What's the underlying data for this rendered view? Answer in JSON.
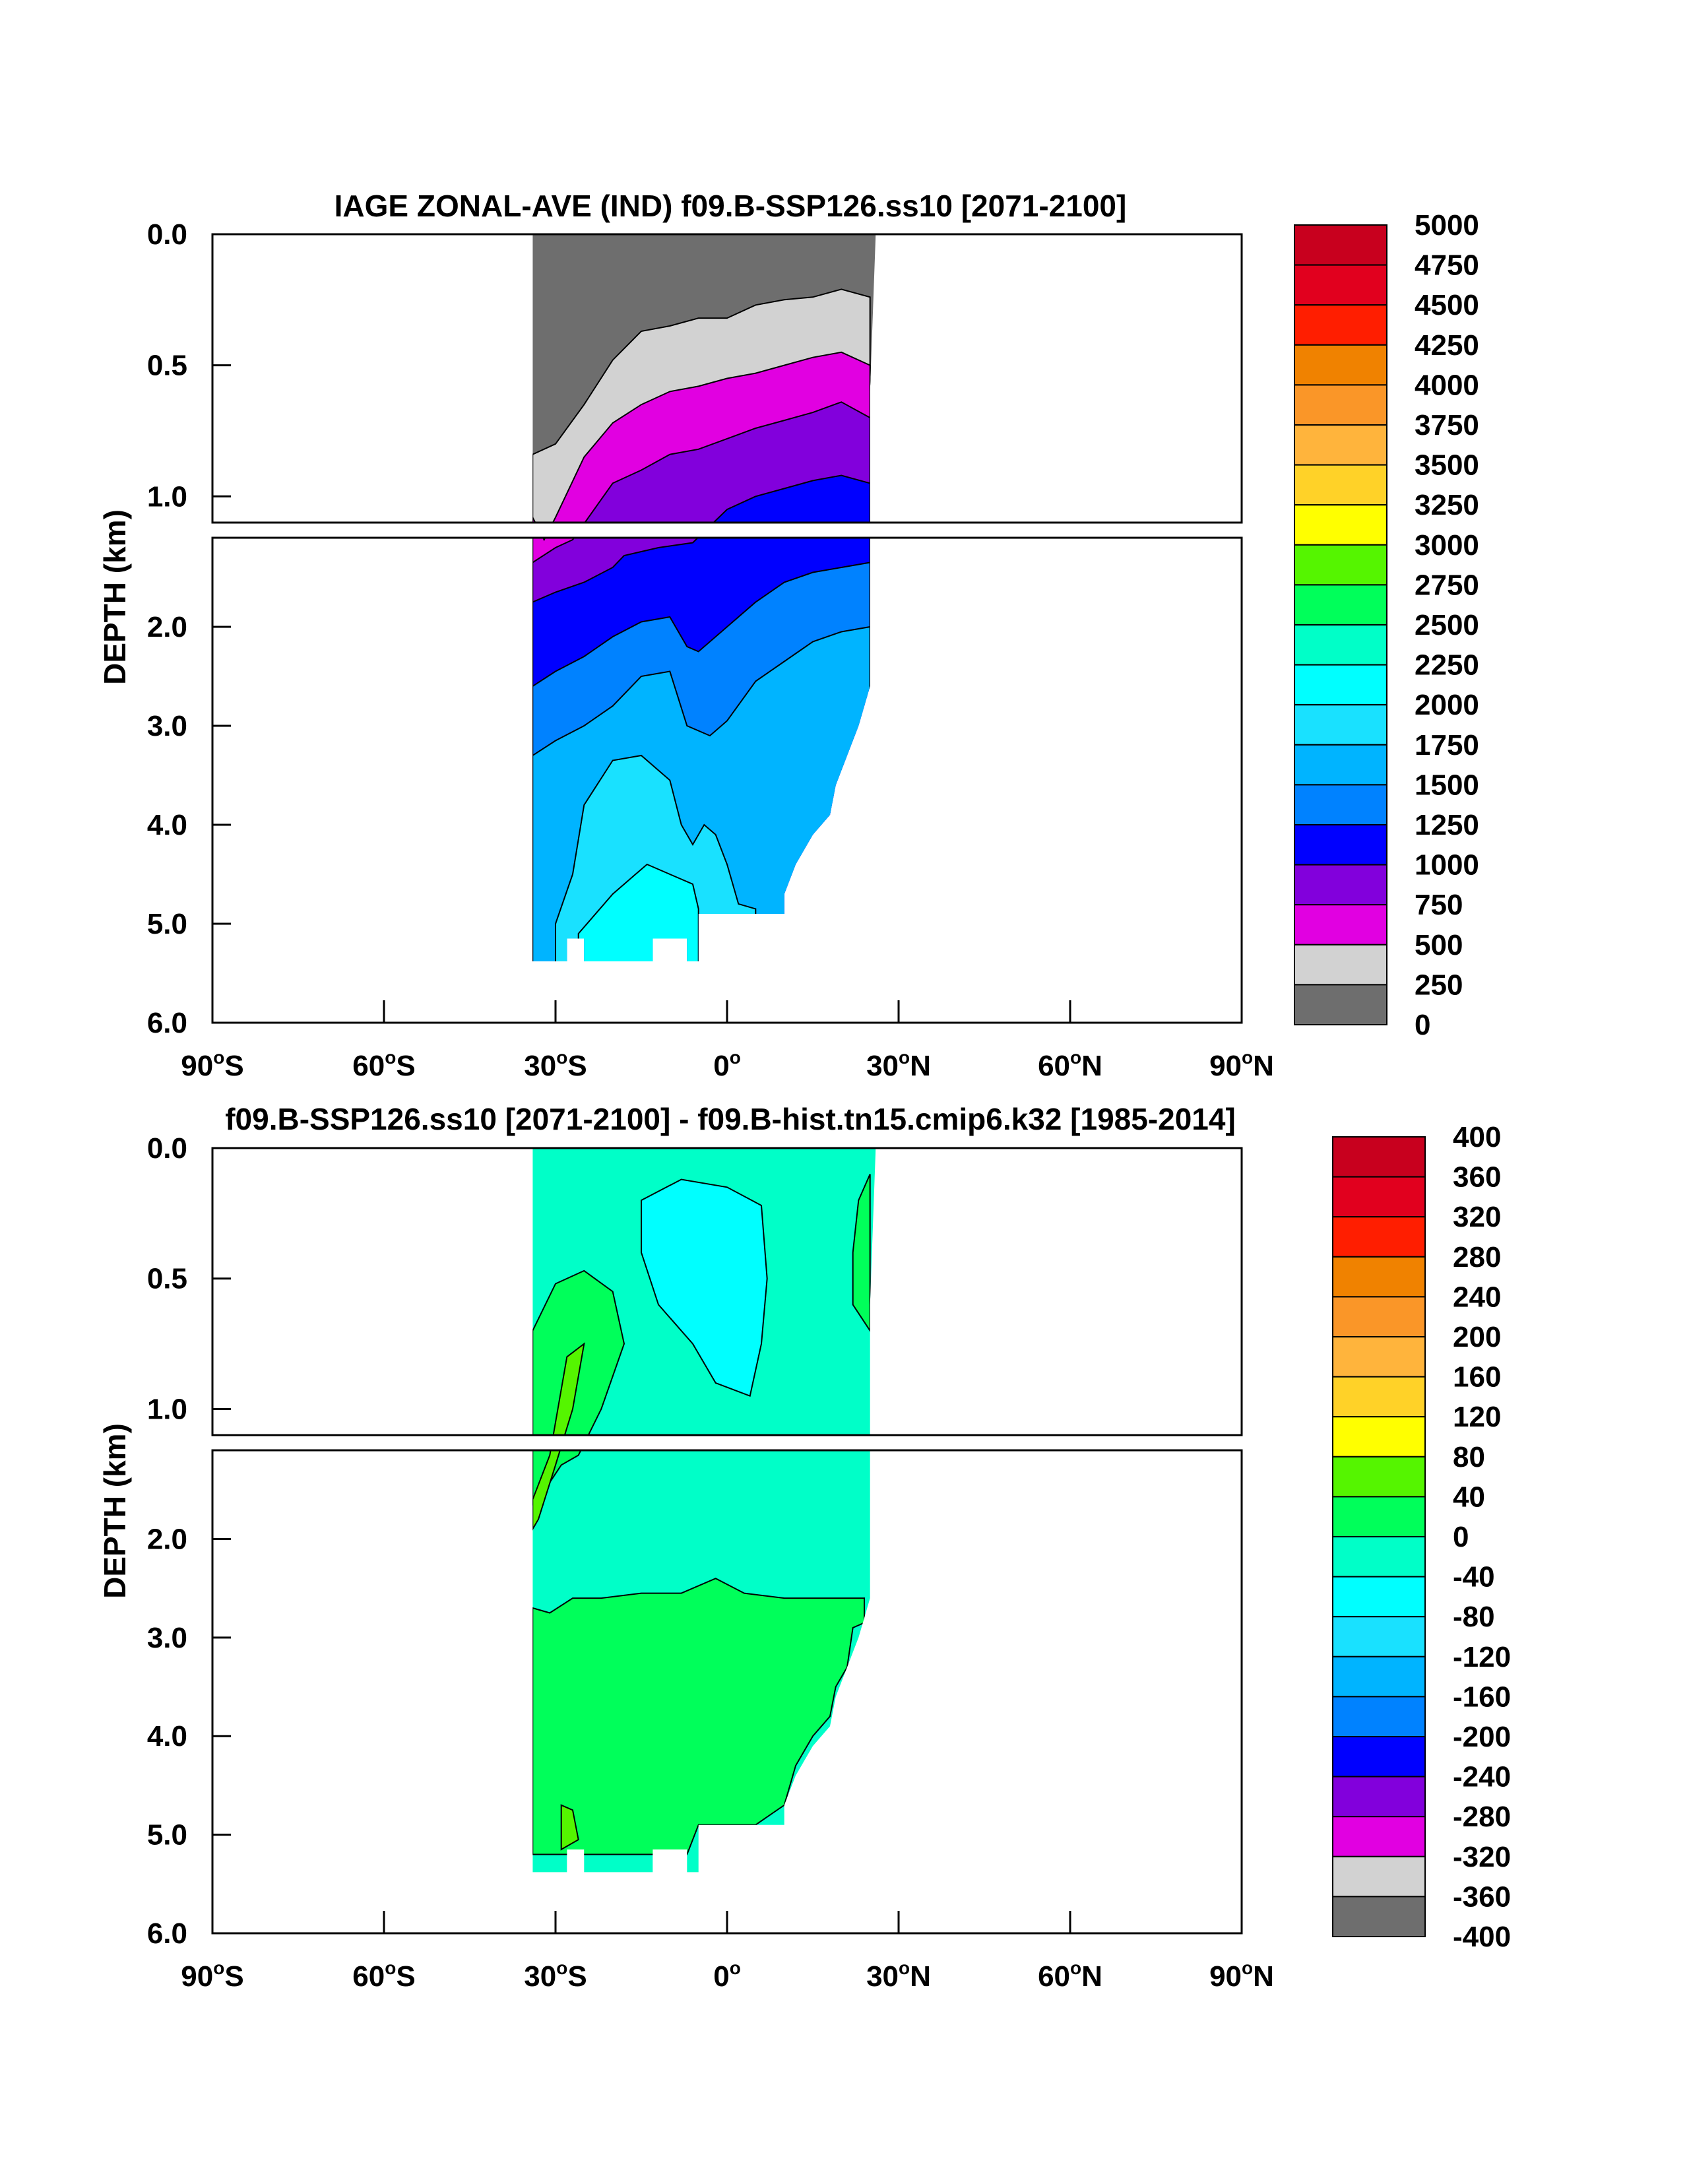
{
  "chart_data": [
    {
      "type": "heatmap",
      "title": "IAGE ZONAL-AVE (IND) f09.B-SSP126.ss10 [2071-2100]",
      "ylabel": "DEPTH (km)",
      "xlabel": "",
      "x_range": [
        -90,
        90
      ],
      "y_range": [
        0,
        6
      ],
      "y_ticks": [
        "0.0",
        "0.5",
        "1.0",
        "2.0",
        "3.0",
        "4.0",
        "5.0",
        "6.0"
      ],
      "x_ticks": [
        {
          "v": -90,
          "deg": "90",
          "hem": "S"
        },
        {
          "v": -60,
          "deg": "60",
          "hem": "S"
        },
        {
          "v": -30,
          "deg": "30",
          "hem": "S"
        },
        {
          "v": 0,
          "deg": "0",
          "hem": ""
        },
        {
          "v": 30,
          "deg": "30",
          "hem": "N"
        },
        {
          "v": 60,
          "deg": "60",
          "hem": "N"
        },
        {
          "v": 90,
          "deg": "90",
          "hem": "N"
        }
      ],
      "colorbar": {
        "levels": [
          "5000",
          "4750",
          "4500",
          "4250",
          "4000",
          "3750",
          "3500",
          "3250",
          "3000",
          "2750",
          "2500",
          "2250",
          "2000",
          "1750",
          "1500",
          "1250",
          "1000",
          "750",
          "500",
          "250",
          "0"
        ],
        "colors": [
          "#c8001e",
          "#e1001e",
          "#ff1e00",
          "#f08200",
          "#fa9628",
          "#ffb43c",
          "#ffd228",
          "#ffff00",
          "#55f500",
          "#00ff5a",
          "#00ffc8",
          "#00ffff",
          "#19e1ff",
          "#00b4ff",
          "#0082ff",
          "#0000ff",
          "#8200dc",
          "#e100e1",
          "#d2d2d2",
          "#6e6e6e"
        ]
      },
      "bands": [
        {
          "level": 0,
          "color": "#6e6e6e",
          "depth_km": [
            [
              -34,
              0
            ],
            [
              -20,
              0
            ],
            [
              -10,
              0
            ],
            [
              0,
              0
            ],
            [
              10,
              0
            ],
            [
              20,
              0
            ],
            [
              26,
              0
            ]
          ]
        },
        {
          "level": 250,
          "color": "#d2d2d2",
          "depth_km": [
            [
              -34,
              0.84
            ],
            [
              -30,
              0.8
            ],
            [
              -25,
              0.65
            ],
            [
              -20,
              0.48
            ],
            [
              -15,
              0.37
            ],
            [
              -10,
              0.35
            ],
            [
              -5,
              0.32
            ],
            [
              0,
              0.32
            ],
            [
              5,
              0.27
            ],
            [
              10,
              0.25
            ],
            [
              15,
              0.24
            ],
            [
              20,
              0.21
            ],
            [
              25,
              0.24
            ]
          ]
        },
        {
          "level": 500,
          "color": "#e100e1",
          "depth_km": [
            [
              -34,
              1.08
            ],
            [
              -32,
              1.12
            ],
            [
              -30,
              1.08
            ],
            [
              -25,
              0.85
            ],
            [
              -20,
              0.72
            ],
            [
              -15,
              0.65
            ],
            [
              -10,
              0.6
            ],
            [
              -5,
              0.58
            ],
            [
              0,
              0.55
            ],
            [
              5,
              0.53
            ],
            [
              10,
              0.5
            ],
            [
              15,
              0.47
            ],
            [
              20,
              0.45
            ],
            [
              25,
              0.5
            ]
          ]
        },
        {
          "level": 750,
          "color": "#8200dc",
          "depth_km": [
            [
              -34,
              1.35
            ],
            [
              -30,
              1.2
            ],
            [
              -27,
              1.12
            ],
            [
              -20,
              0.95
            ],
            [
              -15,
              0.9
            ],
            [
              -10,
              0.84
            ],
            [
              -5,
              0.82
            ],
            [
              0,
              0.78
            ],
            [
              5,
              0.74
            ],
            [
              10,
              0.71
            ],
            [
              15,
              0.68
            ],
            [
              20,
              0.64
            ],
            [
              25,
              0.7
            ]
          ]
        },
        {
          "level": 1000,
          "color": "#0000ff",
          "depth_km": [
            [
              -34,
              1.75
            ],
            [
              -30,
              1.65
            ],
            [
              -25,
              1.55
            ],
            [
              -20,
              1.4
            ],
            [
              -18,
              1.28
            ],
            [
              -12,
              1.2
            ],
            [
              -6,
              1.15
            ],
            [
              0,
              1.05
            ],
            [
              5,
              1.0
            ],
            [
              10,
              0.97
            ],
            [
              15,
              0.94
            ],
            [
              20,
              0.92
            ],
            [
              25,
              0.95
            ]
          ]
        },
        {
          "level": 1250,
          "color": "#0082ff",
          "depth_km": [
            [
              -34,
              2.6
            ],
            [
              -30,
              2.45
            ],
            [
              -25,
              2.3
            ],
            [
              -20,
              2.1
            ],
            [
              -15,
              1.95
            ],
            [
              -10,
              1.9
            ],
            [
              -7,
              2.2
            ],
            [
              -5,
              2.25
            ],
            [
              0,
              2.0
            ],
            [
              5,
              1.75
            ],
            [
              10,
              1.55
            ],
            [
              15,
              1.45
            ],
            [
              20,
              1.4
            ],
            [
              25,
              1.35
            ]
          ]
        },
        {
          "level": 1500,
          "color": "#00b4ff",
          "depth_km": [
            [
              -34,
              3.3
            ],
            [
              -30,
              3.15
            ],
            [
              -25,
              3.0
            ],
            [
              -20,
              2.8
            ],
            [
              -15,
              2.5
            ],
            [
              -10,
              2.45
            ],
            [
              -7,
              3.0
            ],
            [
              -3,
              3.1
            ],
            [
              0,
              2.95
            ],
            [
              5,
              2.55
            ],
            [
              10,
              2.35
            ],
            [
              15,
              2.15
            ],
            [
              20,
              2.05
            ],
            [
              25,
              2.0
            ]
          ]
        },
        {
          "level": 1750,
          "color": "#19e1ff",
          "depth_km": [
            [
              -30,
              5.0
            ],
            [
              -27,
              4.5
            ],
            [
              -25,
              3.8
            ],
            [
              -20,
              3.35
            ],
            [
              -15,
              3.3
            ],
            [
              -10,
              3.55
            ],
            [
              -8,
              4.0
            ],
            [
              -6,
              4.2
            ],
            [
              -4,
              4.0
            ],
            [
              -2,
              4.1
            ],
            [
              0,
              4.4
            ],
            [
              2,
              4.8
            ],
            [
              5,
              4.85
            ]
          ]
        },
        {
          "level": 2000,
          "color": "#00ffff",
          "depth_km": [
            [
              -26,
              5.1
            ],
            [
              -20,
              4.7
            ],
            [
              -16,
              4.5
            ],
            [
              -14,
              4.4
            ],
            [
              -10,
              4.5
            ],
            [
              -6,
              4.6
            ],
            [
              -5,
              4.85
            ]
          ]
        }
      ]
    },
    {
      "type": "heatmap",
      "title": "f09.B-SSP126.ss10 [2071-2100] - f09.B-hist.tn15.cmip6.k32 [1985-2014]",
      "ylabel": "DEPTH (km)",
      "xlabel": "",
      "x_range": [
        -90,
        90
      ],
      "y_range": [
        0,
        6
      ],
      "y_ticks": [
        "0.0",
        "0.5",
        "1.0",
        "2.0",
        "3.0",
        "4.0",
        "5.0",
        "6.0"
      ],
      "x_ticks": [
        {
          "v": -90,
          "deg": "90",
          "hem": "S"
        },
        {
          "v": -60,
          "deg": "60",
          "hem": "S"
        },
        {
          "v": -30,
          "deg": "30",
          "hem": "S"
        },
        {
          "v": 0,
          "deg": "0",
          "hem": ""
        },
        {
          "v": 30,
          "deg": "30",
          "hem": "N"
        },
        {
          "v": 60,
          "deg": "60",
          "hem": "N"
        },
        {
          "v": 90,
          "deg": "90",
          "hem": "N"
        }
      ],
      "colorbar": {
        "levels": [
          "400",
          "360",
          "320",
          "280",
          "240",
          "200",
          "160",
          "120",
          "80",
          "40",
          "0",
          "-40",
          "-80",
          "-120",
          "-160",
          "-200",
          "-240",
          "-280",
          "-320",
          "-360",
          "-400"
        ],
        "colors": [
          "#c8001e",
          "#e1001e",
          "#ff1e00",
          "#f08200",
          "#fa9628",
          "#ffb43c",
          "#ffd228",
          "#ffff00",
          "#55f500",
          "#00ff5a",
          "#00ffc8",
          "#00ffff",
          "#19e1ff",
          "#00b4ff",
          "#0082ff",
          "#0000ff",
          "#8200dc",
          "#e100e1",
          "#d2d2d2",
          "#6e6e6e"
        ]
      },
      "base": {
        "level": -40,
        "color": "#00ffc8"
      },
      "regions": [
        {
          "level": 0,
          "color": "#00ff5a",
          "name": "lower",
          "points": [
            [
              -34,
              2.7
            ],
            [
              -31,
              2.75
            ],
            [
              -27,
              2.6
            ],
            [
              -22,
              2.6
            ],
            [
              -15,
              2.55
            ],
            [
              -8,
              2.55
            ],
            [
              -2,
              2.4
            ],
            [
              3,
              2.55
            ],
            [
              10,
              2.6
            ],
            [
              20,
              2.6
            ],
            [
              24,
              2.6
            ],
            [
              24,
              2.85
            ],
            [
              22,
              2.9
            ],
            [
              21,
              3.3
            ],
            [
              19,
              3.5
            ],
            [
              18,
              3.8
            ],
            [
              15,
              4.0
            ],
            [
              12,
              4.3
            ],
            [
              10,
              4.7
            ],
            [
              5,
              4.9
            ],
            [
              -5,
              4.9
            ],
            [
              -7,
              5.2
            ],
            [
              -13,
              5.2
            ],
            [
              -25,
              5.2
            ],
            [
              -34,
              5.2
            ]
          ]
        },
        {
          "level": 0,
          "color": "#00ff5a",
          "name": "south-arm",
          "points": [
            [
              -34,
              0.7
            ],
            [
              -30,
              0.52
            ],
            [
              -25,
              0.47
            ],
            [
              -20,
              0.55
            ],
            [
              -18,
              0.75
            ],
            [
              -22,
              1.0
            ],
            [
              -26,
              1.15
            ],
            [
              -29,
              1.25
            ],
            [
              -33,
              1.6
            ],
            [
              -34,
              1.65
            ]
          ]
        },
        {
          "level": 0,
          "color": "#00ff5a",
          "name": "north-edge",
          "points": [
            [
              25,
              0.1
            ],
            [
              23,
              0.2
            ],
            [
              22,
              0.4
            ],
            [
              22,
              0.6
            ],
            [
              25,
              0.7
            ]
          ]
        },
        {
          "level": -80,
          "color": "#00ffff",
          "name": "central",
          "points": [
            [
              -15,
              0.2
            ],
            [
              -8,
              0.12
            ],
            [
              0,
              0.15
            ],
            [
              6,
              0.22
            ],
            [
              7,
              0.5
            ],
            [
              6,
              0.75
            ],
            [
              4,
              0.95
            ],
            [
              -2,
              0.9
            ],
            [
              -6,
              0.75
            ],
            [
              -12,
              0.6
            ],
            [
              -15,
              0.4
            ]
          ]
        },
        {
          "level": 40,
          "color": "#55f500",
          "name": "streak",
          "points": [
            [
              -28,
              0.8
            ],
            [
              -25,
              0.75
            ],
            [
              -27,
              1.0
            ],
            [
              -30,
              1.25
            ],
            [
              -33,
              1.8
            ],
            [
              -34,
              1.9
            ],
            [
              -34,
              1.6
            ],
            [
              -31,
              1.15
            ]
          ]
        },
        {
          "level": 40,
          "color": "#55f500",
          "name": "deep-blob",
          "points": [
            [
              -29,
              4.7
            ],
            [
              -27,
              4.75
            ],
            [
              -26,
              5.05
            ],
            [
              -29,
              5.15
            ]
          ]
        }
      ]
    }
  ]
}
